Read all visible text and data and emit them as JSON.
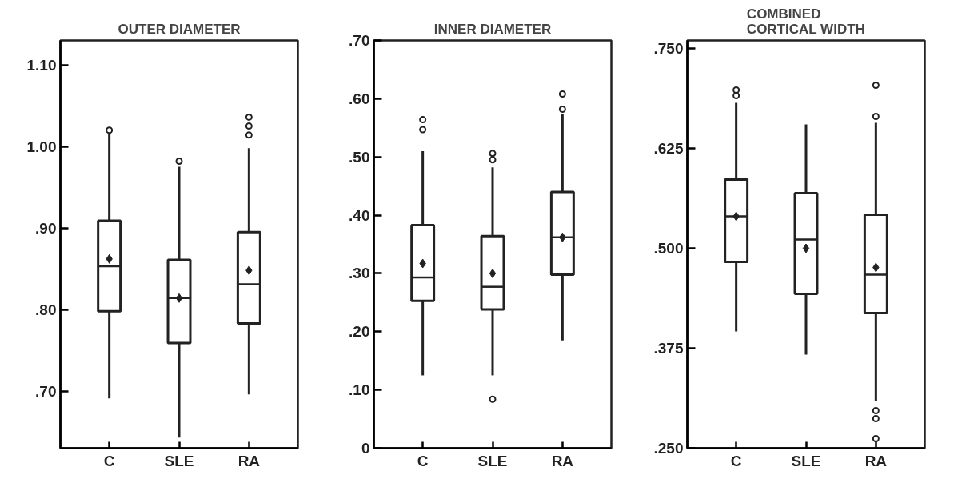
{
  "chart_data": [
    {
      "type": "box",
      "title": "OUTER DIAMETER",
      "categories": [
        "C",
        "SLE",
        "RA"
      ],
      "ylim": [
        0.63,
        1.13
      ],
      "yticks": [
        {
          "value": 0.7,
          "label": ".70"
        },
        {
          "value": 0.8,
          "label": ".80"
        },
        {
          "value": 0.9,
          "label": ".90"
        },
        {
          "value": 1.0,
          "label": "1.00"
        },
        {
          "value": 1.1,
          "label": "1.10"
        }
      ],
      "boxes": [
        {
          "low": 0.691,
          "q1": 0.798,
          "median": 0.853,
          "q3": 0.909,
          "high": 1.018,
          "mean": 0.862,
          "outliers": [
            1.02
          ]
        },
        {
          "low": 0.643,
          "q1": 0.759,
          "median": 0.814,
          "q3": 0.861,
          "high": 0.975,
          "mean": 0.814,
          "outliers": [
            0.982
          ]
        },
        {
          "low": 0.696,
          "q1": 0.783,
          "median": 0.831,
          "q3": 0.895,
          "high": 0.998,
          "mean": 0.848,
          "outliers": [
            1.014,
            1.025,
            1.036
          ]
        }
      ]
    },
    {
      "type": "box",
      "title": "INNER DIAMETER",
      "categories": [
        "C",
        "SLE",
        "RA"
      ],
      "ylim": [
        0,
        0.7
      ],
      "yticks": [
        0,
        {
          "value": 0.1,
          "label": ".10"
        },
        {
          "value": 0.2,
          "label": ".20"
        },
        {
          "value": 0.3,
          "label": ".30"
        },
        {
          "value": 0.4,
          "label": ".40"
        },
        {
          "value": 0.5,
          "label": ".50"
        },
        {
          "value": 0.6,
          "label": ".60"
        },
        {
          "value": 0.7,
          "label": ".70"
        }
      ],
      "boxes": [
        {
          "low": 0.125,
          "q1": 0.253,
          "median": 0.293,
          "q3": 0.383,
          "high": 0.51,
          "mean": 0.317,
          "outliers": [
            0.547,
            0.564
          ]
        },
        {
          "low": 0.125,
          "q1": 0.238,
          "median": 0.277,
          "q3": 0.364,
          "high": 0.482,
          "mean": 0.3,
          "outliers": [
            0.084,
            0.495,
            0.506
          ]
        },
        {
          "low": 0.185,
          "q1": 0.298,
          "median": 0.362,
          "q3": 0.44,
          "high": 0.574,
          "mean": 0.362,
          "outliers": [
            0.582,
            0.608
          ]
        }
      ]
    },
    {
      "type": "box",
      "title": "COMBINED\nCORTICAL WIDTH",
      "categories": [
        "C",
        "SLE",
        "RA"
      ],
      "ylim": [
        0.25,
        0.76
      ],
      "yticks": [
        {
          "value": 0.25,
          "label": ".250"
        },
        {
          "value": 0.375,
          "label": ".375"
        },
        {
          "value": 0.5,
          "label": ".500"
        },
        {
          "value": 0.625,
          "label": ".625"
        },
        {
          "value": 0.75,
          "label": ".750"
        }
      ],
      "boxes": [
        {
          "low": 0.396,
          "q1": 0.483,
          "median": 0.54,
          "q3": 0.586,
          "high": 0.682,
          "mean": 0.54,
          "outliers": [
            0.691,
            0.698
          ]
        },
        {
          "low": 0.367,
          "q1": 0.443,
          "median": 0.511,
          "q3": 0.569,
          "high": 0.655,
          "mean": 0.5
        },
        {
          "low": 0.309,
          "q1": 0.419,
          "median": 0.467,
          "q3": 0.542,
          "high": 0.657,
          "mean": 0.476,
          "outliers": [
            0.262,
            0.287,
            0.297,
            0.665,
            0.704
          ]
        }
      ]
    }
  ]
}
